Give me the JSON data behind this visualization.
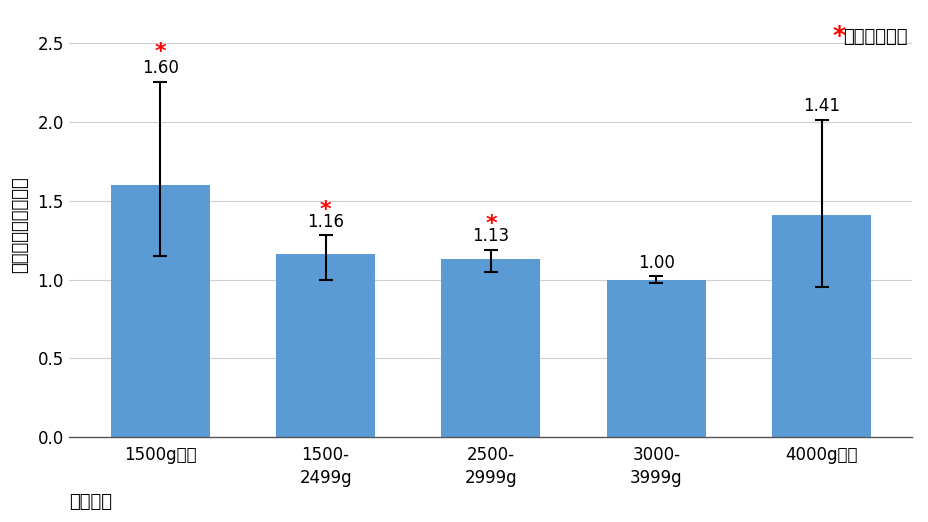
{
  "categories": [
    "1500g未満",
    "1500-\n2499g",
    "2500-\n2999g",
    "3000-\n3999g",
    "4000g以上"
  ],
  "values": [
    1.6,
    1.16,
    1.13,
    1.0,
    1.41
  ],
  "err_up": [
    0.65,
    0.12,
    0.06,
    0.02,
    0.6
  ],
  "err_down": [
    0.45,
    0.16,
    0.08,
    0.02,
    0.46
  ],
  "significant": [
    true,
    true,
    true,
    false,
    false
  ],
  "bar_color": "#5B9BD5",
  "errorbar_color": "#000000",
  "star_color": "#FF0000",
  "ylabel": "多変量調整オッズ比",
  "xlabel": "出生体重",
  "ylim": [
    0.0,
    2.7
  ],
  "yticks": [
    0.0,
    0.5,
    1.0,
    1.5,
    2.0,
    2.5
  ],
  "legend_text": "統計学的有意",
  "value_labels": [
    "1.60",
    "1.16",
    "1.13",
    "1.00",
    "1.41"
  ],
  "background_color": "#FFFFFF",
  "grid_color": "#D0D0D0",
  "label_fontsize": 13,
  "tick_fontsize": 12,
  "value_fontsize": 12,
  "star_fontsize": 16,
  "legend_fontsize": 13
}
